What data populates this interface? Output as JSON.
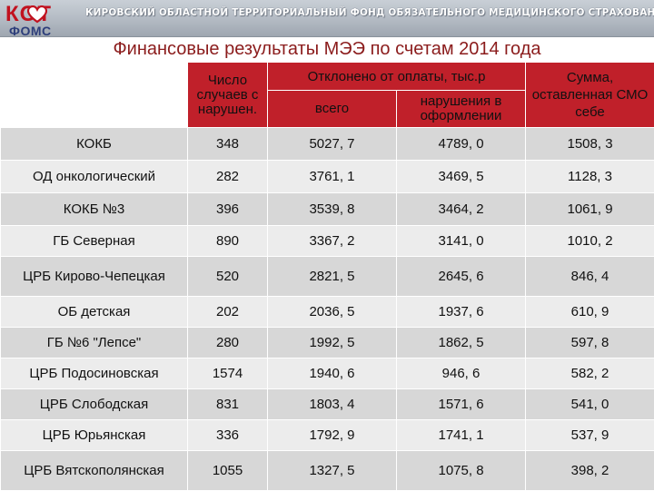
{
  "header": {
    "logo_top": "КОТ",
    "logo_bottom": "ФОМС",
    "fund_title": "КИРОВСКИЙ ОБЛАСТНОЙ ТЕРРИТОРИАЛЬНЫЙ ФОНД ОБЯЗАТЕЛЬНОГО МЕДИЦИНСКОГО СТРАХОВАНИЯ"
  },
  "title": "Финансовые результаты МЭЭ по счетам 2014 года",
  "table": {
    "columns": {
      "cases": "Число случаев с нарушен.",
      "rejected_group": "Отклонено от оплаты, тыс.р",
      "rejected_total": "всего",
      "rejected_paperwork": "нарушения в оформлении",
      "kept_by_smo": "Сумма, оставленная СМО себе"
    },
    "rows": [
      {
        "name": "КОКБ",
        "cases": "348",
        "total": "5027, 7",
        "paperwork": "4789, 0",
        "kept": "1508, 3"
      },
      {
        "name": "ОД онкологический",
        "cases": "282",
        "total": "3761, 1",
        "paperwork": "3469, 5",
        "kept": "1128, 3"
      },
      {
        "name": "КОКБ №3",
        "cases": "396",
        "total": "3539, 8",
        "paperwork": "3464, 2",
        "kept": "1061, 9"
      },
      {
        "name": "ГБ Северная",
        "cases": "890",
        "total": "3367, 2",
        "paperwork": "3141, 0",
        "kept": "1010, 2"
      },
      {
        "name": "ЦРБ Кирово-Чепецкая",
        "cases": "520",
        "total": "2821, 5",
        "paperwork": "2645, 6",
        "kept": "846, 4"
      },
      {
        "name": "ОБ детская",
        "cases": "202",
        "total": "2036, 5",
        "paperwork": "1937, 6",
        "kept": "610, 9"
      },
      {
        "name": "ГБ №6 \"Лепсе\"",
        "cases": "280",
        "total": "1992, 5",
        "paperwork": "1862, 5",
        "kept": "597, 8"
      },
      {
        "name": "ЦРБ Подосиновская",
        "cases": "1574",
        "total": "1940, 6",
        "paperwork": "946, 6",
        "kept": "582, 2"
      },
      {
        "name": "ЦРБ Слободская",
        "cases": "831",
        "total": "1803, 4",
        "paperwork": "1571, 6",
        "kept": "541, 0"
      },
      {
        "name": "ЦРБ Юрьянская",
        "cases": "336",
        "total": "1792, 9",
        "paperwork": "1741, 1",
        "kept": "537, 9"
      },
      {
        "name": "ЦРБ Вятскополянская",
        "cases": "1055",
        "total": "1327, 5",
        "paperwork": "1075, 8",
        "kept": "398, 2"
      }
    ]
  }
}
